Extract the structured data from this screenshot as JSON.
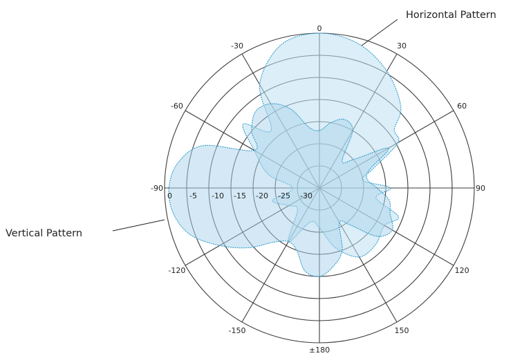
{
  "chart_data": {
    "type": "polar",
    "title": "",
    "angle_labels": [
      "0",
      "30",
      "60",
      "90",
      "120",
      "150",
      "±180",
      "-150",
      "-120",
      "-90",
      "-60",
      "-30"
    ],
    "angle_values": [
      0,
      30,
      60,
      90,
      120,
      150,
      180,
      -150,
      -120,
      -90,
      -60,
      -30
    ],
    "radial_labels": [
      "0",
      "-5",
      "-10",
      "-15",
      "-20",
      "-25",
      "-30"
    ],
    "radial_values": [
      0,
      -5,
      -10,
      -15,
      -20,
      -25,
      -30
    ],
    "radial_range": [
      -35,
      0
    ],
    "grid": true,
    "series": [
      {
        "name": "Horizontal Pattern",
        "angles": [
          0,
          15,
          30,
          45,
          52,
          60,
          70,
          80,
          90,
          100,
          110,
          120,
          135,
          150,
          165,
          180,
          195,
          210,
          225,
          240,
          255,
          270,
          285,
          300,
          310,
          320,
          330,
          345
        ],
        "values": [
          0,
          -1.2,
          -4.5,
          -9,
          -13.5,
          -14.5,
          -22,
          -25,
          -19,
          -22,
          -16,
          -18,
          -17,
          -17,
          -21,
          -26,
          -27,
          -21,
          -28,
          -27,
          -24,
          -29,
          -23,
          -18,
          -12.5,
          -18,
          -8,
          -1.5
        ]
      },
      {
        "name": "Vertical Pattern",
        "angles": [
          0,
          10,
          20,
          30,
          40,
          50,
          60,
          70,
          80,
          90,
          100,
          110,
          120,
          130,
          140,
          150,
          160,
          170,
          180,
          190,
          200,
          210,
          220,
          230,
          240,
          250,
          260,
          270,
          280,
          290,
          300,
          310,
          320,
          330,
          340,
          350
        ],
        "values": [
          -22,
          -20,
          -18.5,
          -20,
          -27,
          -25,
          -17,
          -23,
          -24,
          -22,
          -19,
          -18,
          -16,
          -18,
          -24,
          -26,
          -20,
          -17,
          -15,
          -16,
          -20,
          -21,
          -19,
          -14,
          -9,
          -4,
          -1.5,
          -1,
          -2.5,
          -7,
          -18,
          -15,
          -12.5,
          -13,
          -16,
          -21
        ]
      }
    ]
  },
  "annotations": {
    "horizontal_label": "Horizontal Pattern",
    "vertical_label": "Vertical Pattern"
  }
}
